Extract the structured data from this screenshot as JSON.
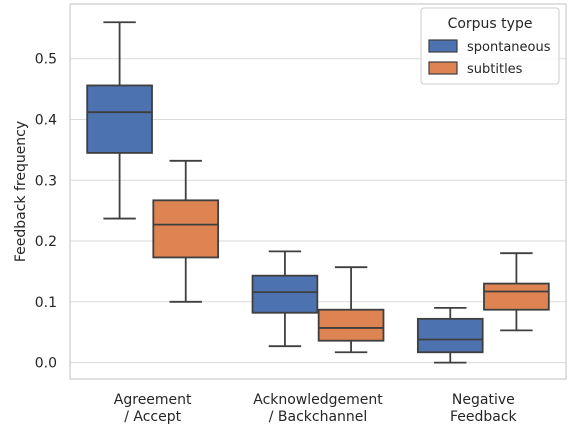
{
  "chart_data": {
    "type": "box",
    "categories": [
      [
        "Agreement",
        "/ Accept"
      ],
      [
        "Acknowledgement",
        "/ Backchannel"
      ],
      [
        "Negative",
        "Feedback"
      ]
    ],
    "ylabel": "Feedback frequency",
    "xlabel": "",
    "title": "",
    "ylim": [
      -0.027,
      0.59
    ],
    "yticks": [
      0.0,
      0.1,
      0.2,
      0.3,
      0.4,
      0.5
    ],
    "ytick_labels": [
      "0.0",
      "0.1",
      "0.2",
      "0.3",
      "0.4",
      "0.5"
    ],
    "grid": true,
    "legend": {
      "title": "Corpus type",
      "position": "top-right"
    },
    "series": [
      {
        "name": "spontaneous",
        "color": "#4c72b0",
        "boxes": [
          {
            "whisker_low": 0.237,
            "q1": 0.345,
            "median": 0.412,
            "q3": 0.456,
            "whisker_high": 0.56
          },
          {
            "whisker_low": 0.027,
            "q1": 0.082,
            "median": 0.116,
            "q3": 0.143,
            "whisker_high": 0.183
          },
          {
            "whisker_low": 0.0,
            "q1": 0.017,
            "median": 0.038,
            "q3": 0.072,
            "whisker_high": 0.09
          }
        ]
      },
      {
        "name": "subtitles",
        "color": "#dd8452",
        "boxes": [
          {
            "whisker_low": 0.1,
            "q1": 0.173,
            "median": 0.227,
            "q3": 0.267,
            "whisker_high": 0.332
          },
          {
            "whisker_low": 0.017,
            "q1": 0.036,
            "median": 0.057,
            "q3": 0.087,
            "whisker_high": 0.157
          },
          {
            "whisker_low": 0.053,
            "q1": 0.087,
            "median": 0.117,
            "q3": 0.13,
            "whisker_high": 0.18
          }
        ]
      }
    ]
  }
}
